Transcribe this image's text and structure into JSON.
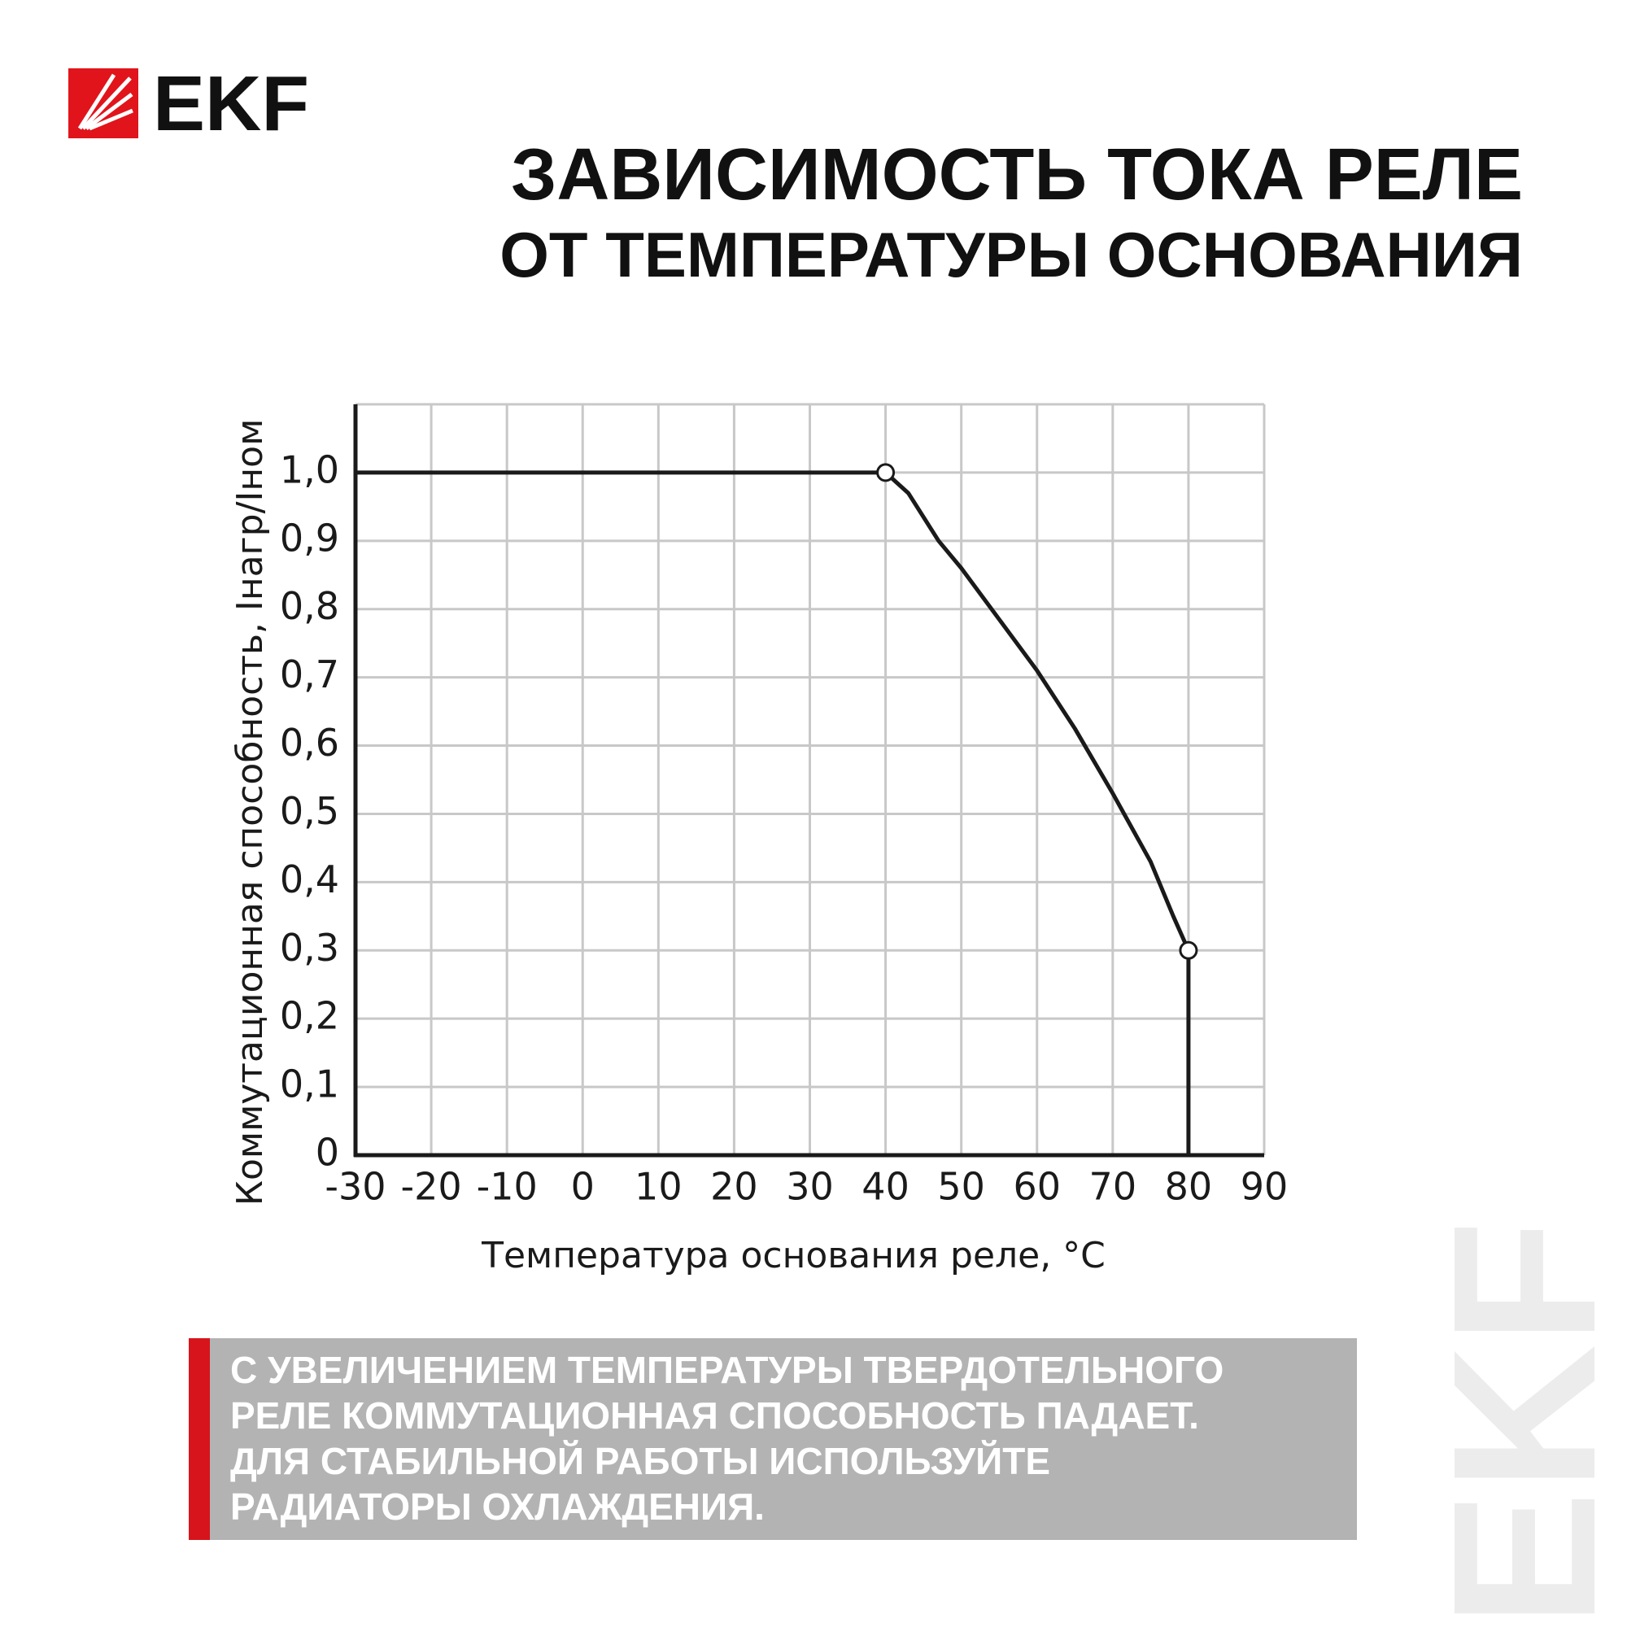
{
  "logo": "EKF",
  "watermark": "EKF",
  "description": [
    "С УВЕЛИЧЕНИЕМ ТЕМПЕРАТУРЫ ТВЕРДОТЕЛЬНОГО",
    "РЕЛЕ КОММУТАЦИОННАЯ СПОСОБНОСТЬ ПАДАЕТ.",
    "ДЛЯ СТАБИЛЬНОЙ РАБОТЫ ИСПОЛЬЗУЙТЕ",
    "РАДИАТОРЫ ОХЛАЖДЕНИЯ."
  ],
  "chart_data": {
    "type": "line",
    "title": "ЗАВИСИМОСТЬ ТОКА РЕЛЕ",
    "subtitle": "ОТ ТЕМПЕРАТУРЫ ОСНОВАНИЯ",
    "x_label": "Температура основания реле, °C",
    "y_label": "Коммутационная способность, Iнагр/Iном",
    "xlim": [
      -30,
      90
    ],
    "ylim": [
      0,
      1.1
    ],
    "xticks": [
      -30,
      -20,
      -10,
      0,
      10,
      20,
      30,
      40,
      50,
      60,
      70,
      80,
      90
    ],
    "yticks": [
      0,
      {
        "value": 0.1,
        "label": "0,1"
      },
      {
        "value": 0.2,
        "label": "0,2"
      },
      {
        "value": 0.3,
        "label": "0,3"
      },
      {
        "value": 0.4,
        "label": "0,4"
      },
      {
        "value": 0.5,
        "label": "0,5"
      },
      {
        "value": 0.6,
        "label": "0,6"
      },
      {
        "value": 0.7,
        "label": "0,7"
      },
      {
        "value": 0.8,
        "label": "0,8"
      },
      {
        "value": 0.9,
        "label": "0,9"
      },
      {
        "value": 1.0,
        "label": "1,0"
      }
    ],
    "grid": true,
    "series": [
      {
        "color": "#1a1a1a",
        "x": [
          -30,
          40,
          43,
          47,
          50,
          55,
          60,
          65,
          70,
          75,
          78,
          80,
          80
        ],
        "values": [
          1.0,
          1.0,
          0.97,
          0.9,
          0.86,
          0.785,
          0.71,
          0.625,
          0.53,
          0.43,
          0.35,
          0.3,
          0
        ]
      },
      {
        "color": "#1a1a1a",
        "marker": "open-circle",
        "x": [
          40,
          80
        ],
        "values": [
          1.0,
          0.3
        ]
      }
    ]
  }
}
